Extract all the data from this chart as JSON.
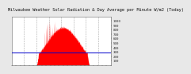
{
  "title": "Milwaukee Weather Solar Radiation & Day Average per Minute W/m2 (Today)",
  "bg_color": "#e8e8e8",
  "plot_bg_color": "#ffffff",
  "bar_color": "#ff0000",
  "avg_line_color": "#0000cc",
  "avg_line_value": 280,
  "ylim": [
    0,
    1100
  ],
  "yticks": [
    100,
    200,
    300,
    400,
    500,
    600,
    700,
    800,
    900,
    1000
  ],
  "num_points": 1440,
  "grid_color": "#aaaaaa",
  "tick_color": "#333333",
  "title_fontsize": 3.8,
  "axis_fontsize": 3.0,
  "num_xticks": 24,
  "num_vgrid": 7
}
